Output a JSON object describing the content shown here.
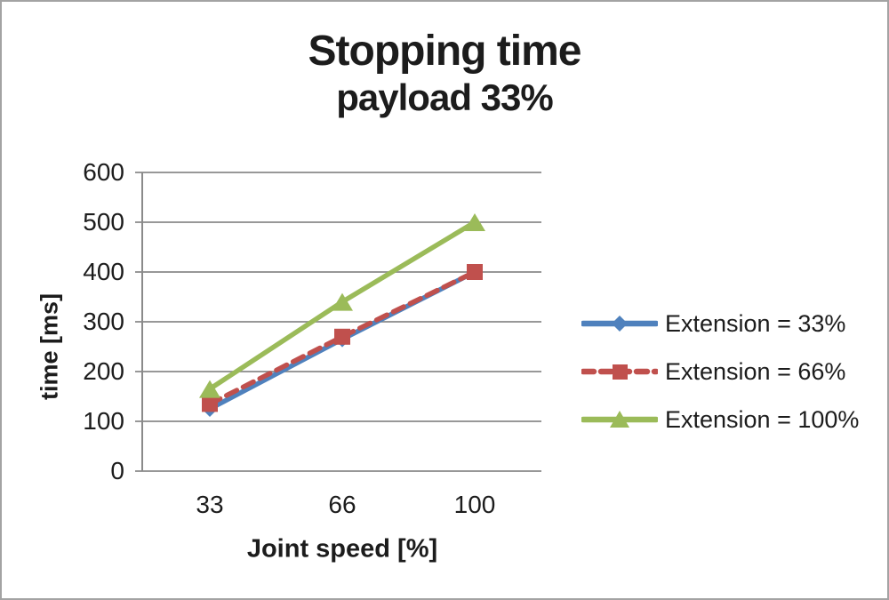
{
  "frame": {
    "background": "#ffffff",
    "border_color": "#a3a3a3"
  },
  "chart_data": {
    "type": "line",
    "title": "Stopping time",
    "subtitle": "payload 33%",
    "xlabel": "Joint speed [%]",
    "ylabel": "time [ms]",
    "categories": [
      "33",
      "66",
      "100"
    ],
    "ylim": [
      0,
      600
    ],
    "ytick_step": 100,
    "yticks": [
      0,
      100,
      200,
      300,
      400,
      500,
      600
    ],
    "grid": true,
    "legend_position": "right",
    "grid_color": "#8a8a8a",
    "series": [
      {
        "name": "Extension = 33%",
        "values": [
          125,
          265,
          400
        ],
        "color": "#4F81BD",
        "marker": "diamond",
        "dash": "solid"
      },
      {
        "name": "Extension = 66%",
        "values": [
          135,
          270,
          400
        ],
        "color": "#C0504D",
        "marker": "square",
        "dash": "dashed"
      },
      {
        "name": "Extension = 100%",
        "values": [
          165,
          340,
          500
        ],
        "color": "#9BBB59",
        "marker": "triangle",
        "dash": "solid"
      }
    ]
  }
}
